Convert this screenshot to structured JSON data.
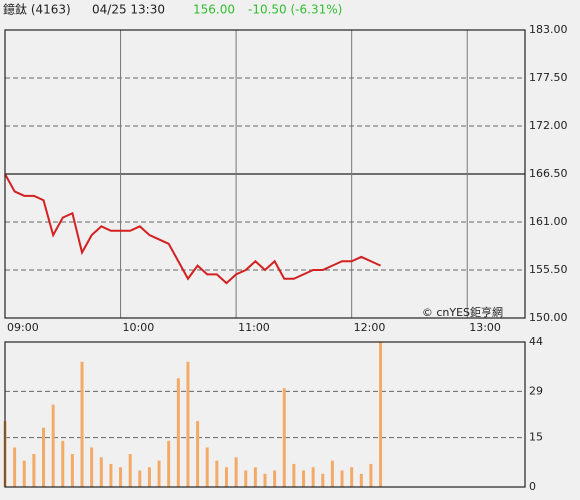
{
  "header": {
    "name": "鐿鈦 (4163)",
    "datetime": "04/25 13:30",
    "price": "156.00",
    "change": "-10.50 (-6.31%)"
  },
  "chart_data": [
    {
      "type": "line",
      "watermark": "© cnYES鉅亨網",
      "color": "#d42020",
      "prev_close": 166.5,
      "xlim": [
        "09:00",
        "13:30"
      ],
      "xticks": [
        "09:00",
        "10:00",
        "11:00",
        "12:00",
        "13:00"
      ],
      "ylim": [
        150,
        183
      ],
      "yticks": [
        {
          "value": 150,
          "label": "150.00"
        },
        {
          "value": 155.5,
          "label": "155.50"
        },
        {
          "value": 161,
          "label": "161.00"
        },
        {
          "value": 166.5,
          "label": "166.50"
        },
        {
          "value": 172,
          "label": "172.00"
        },
        {
          "value": 177.5,
          "label": "177.50"
        },
        {
          "value": 183,
          "label": "183.00"
        }
      ],
      "x": [
        "09:00",
        "09:05",
        "09:10",
        "09:15",
        "09:20",
        "09:25",
        "09:30",
        "09:35",
        "09:40",
        "09:45",
        "09:50",
        "09:55",
        "10:00",
        "10:05",
        "10:10",
        "10:15",
        "10:20",
        "10:25",
        "10:30",
        "10:35",
        "10:40",
        "10:45",
        "10:50",
        "10:55",
        "11:00",
        "11:05",
        "11:10",
        "11:15",
        "11:20",
        "11:25",
        "11:30",
        "11:35",
        "11:40",
        "11:45",
        "11:50",
        "11:55",
        "12:00",
        "12:05",
        "12:10",
        "12:15"
      ],
      "values": [
        166.5,
        164.5,
        164,
        164,
        163.5,
        159.5,
        161.5,
        162,
        157.5,
        159.5,
        160.5,
        160,
        160,
        160,
        160.5,
        159.5,
        159,
        158.5,
        156.5,
        154.5,
        156,
        155,
        155,
        154,
        155,
        155.5,
        156.5,
        155.5,
        156.5,
        154.5,
        154.5,
        155,
        155.5,
        155.5,
        156,
        156.5,
        156.5,
        157,
        156.5,
        156
      ]
    },
    {
      "type": "bar",
      "color": "#f2aa66",
      "xlim": [
        "09:00",
        "13:30"
      ],
      "ylim": [
        0,
        44
      ],
      "yticks": [
        0,
        15,
        29,
        44
      ],
      "x": [
        "09:00",
        "09:05",
        "09:10",
        "09:15",
        "09:20",
        "09:25",
        "09:30",
        "09:35",
        "09:40",
        "09:45",
        "09:50",
        "09:55",
        "10:00",
        "10:05",
        "10:10",
        "10:15",
        "10:20",
        "10:25",
        "10:30",
        "10:35",
        "10:40",
        "10:45",
        "10:50",
        "10:55",
        "11:00",
        "11:05",
        "11:10",
        "11:15",
        "11:20",
        "11:25",
        "11:30",
        "11:35",
        "11:40",
        "11:45",
        "11:50",
        "11:55",
        "12:00",
        "12:05",
        "12:10",
        "12:15"
      ],
      "values": [
        20,
        12,
        8,
        10,
        18,
        25,
        14,
        10,
        38,
        12,
        9,
        7,
        6,
        10,
        5,
        6,
        8,
        14,
        33,
        38,
        20,
        12,
        8,
        6,
        9,
        5,
        6,
        4,
        5,
        30,
        7,
        5,
        6,
        4,
        8,
        5,
        6,
        4,
        7,
        44
      ]
    }
  ]
}
